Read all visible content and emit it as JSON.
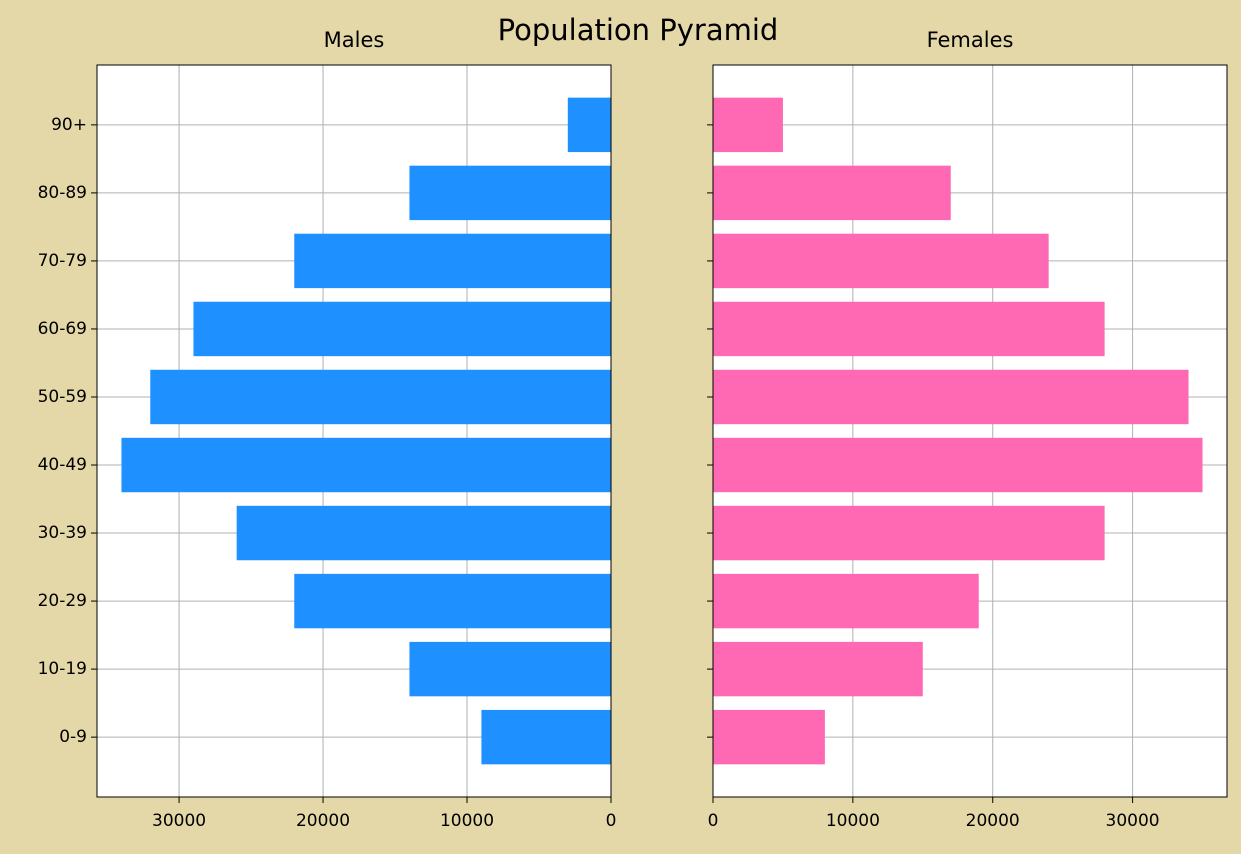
{
  "title": "Population Pyramid",
  "chart_data": [
    {
      "type": "barh",
      "title": "Males",
      "categories": [
        "0-9",
        "10-19",
        "20-29",
        "30-39",
        "40-49",
        "50-59",
        "60-69",
        "70-79",
        "80-89",
        "90+"
      ],
      "values": [
        9000,
        14000,
        22000,
        26000,
        34000,
        32000,
        29000,
        22000,
        14000,
        3000
      ],
      "color": "#1e90ff",
      "xlim": [
        35700,
        0
      ],
      "xticks": [
        30000,
        20000,
        10000,
        0
      ],
      "grid": true
    },
    {
      "type": "barh",
      "title": "Females",
      "values": [
        8000,
        15000,
        19000,
        28000,
        35000,
        34000,
        28000,
        24000,
        17000,
        5000
      ],
      "color": "#ff69b4",
      "xlim": [
        0,
        36750
      ],
      "xticks": [
        0,
        10000,
        20000,
        30000
      ],
      "grid": true
    }
  ]
}
